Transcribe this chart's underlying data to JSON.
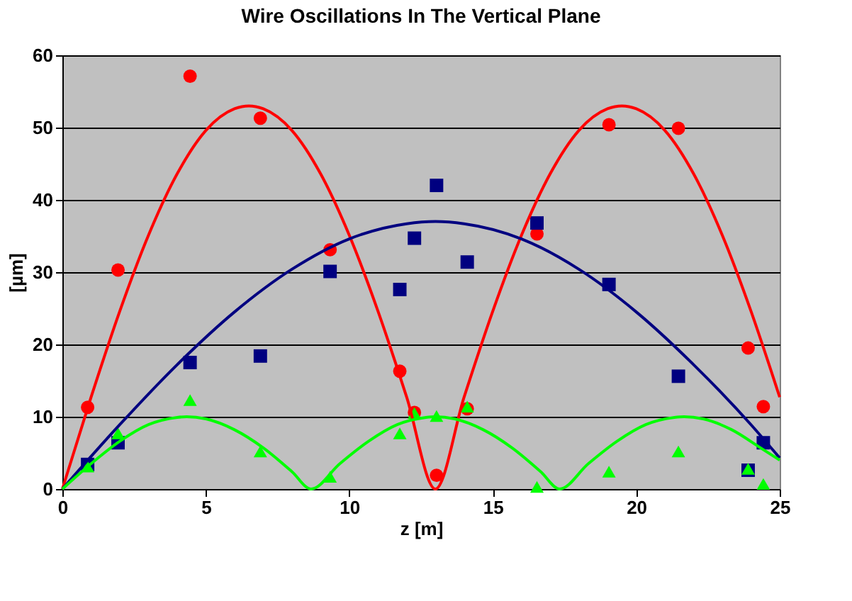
{
  "chart_data": {
    "type": "scatter",
    "title": "Wire Oscillations In The Vertical Plane",
    "xlabel": "z [m]",
    "ylabel": "[µm]",
    "xlim": [
      0,
      25
    ],
    "ylim": [
      0,
      60
    ],
    "xticks": [
      0,
      5,
      10,
      15,
      20,
      25
    ],
    "yticks": [
      0,
      10,
      20,
      30,
      40,
      50,
      60
    ],
    "grid": "y",
    "series": [
      {
        "marker": "circle",
        "color": "#ff0000",
        "x": [
          0.88,
          1.94,
          4.45,
          6.9,
          9.33,
          11.76,
          12.27,
          13.04,
          14.11,
          16.54,
          19.05,
          21.47,
          23.9,
          24.43
        ],
        "values": [
          11.3,
          30.3,
          57.1,
          51.3,
          33.1,
          16.3,
          10.6,
          1.9,
          11.1,
          35.3,
          50.4,
          49.9,
          19.5,
          11.4
        ]
      },
      {
        "marker": "square",
        "color": "#000080",
        "x": [
          0.88,
          1.94,
          4.45,
          6.9,
          9.33,
          11.76,
          12.27,
          13.04,
          14.11,
          16.54,
          19.05,
          21.47,
          23.9,
          24.43
        ],
        "values": [
          3.4,
          6.4,
          17.5,
          18.4,
          30.1,
          27.6,
          34.7,
          42.0,
          31.4,
          36.8,
          28.3,
          15.6,
          2.6,
          6.4
        ]
      },
      {
        "marker": "triangle",
        "color": "#00ff00",
        "x": [
          0.88,
          1.94,
          4.45,
          6.9,
          9.33,
          11.76,
          12.27,
          13.04,
          14.11,
          16.54,
          19.05,
          21.47,
          23.9,
          24.43
        ],
        "values": [
          3.1,
          7.7,
          12.3,
          5.2,
          1.7,
          7.7,
          10.5,
          10.1,
          11.4,
          0.3,
          2.4,
          5.2,
          2.8,
          0.7
        ]
      },
      {
        "type": "line",
        "line_style": "solid",
        "color": "#ff0000",
        "x": [
          0,
          1,
          2,
          3,
          4,
          5,
          6,
          6.5,
          7,
          8,
          9,
          10,
          11,
          12,
          13,
          14,
          15,
          16,
          17,
          18,
          19,
          19.5,
          20,
          21,
          22,
          23,
          24,
          25
        ],
        "values": [
          0,
          12.7,
          24.6,
          35.1,
          43.6,
          49.6,
          52.6,
          53,
          52.6,
          49.6,
          43.6,
          35.1,
          24.6,
          12.7,
          0,
          12.7,
          24.6,
          35.1,
          43.6,
          49.6,
          52.6,
          53,
          52.6,
          49.6,
          43.6,
          35.1,
          24.6,
          12.7
        ]
      },
      {
        "type": "line",
        "line_style": "solid",
        "color": "#000080",
        "x": [
          0,
          2,
          4,
          6,
          8,
          10,
          12,
          13,
          14,
          16,
          18,
          20,
          22,
          24,
          25
        ],
        "values": [
          0,
          8.9,
          17.2,
          24.5,
          30.4,
          34.6,
          36.7,
          37,
          36.7,
          34.6,
          30.4,
          24.5,
          17.2,
          8.9,
          4.3
        ]
      },
      {
        "type": "line",
        "line_style": "solid",
        "color": "#00ff00",
        "x": [
          0,
          1,
          2,
          3,
          4,
          4.33,
          5,
          6,
          7,
          8,
          8.67,
          9.67,
          10.67,
          11.67,
          12.67,
          13,
          13.67,
          14.67,
          15.67,
          16.67,
          17.33,
          18.33,
          19.33,
          20.33,
          21.33,
          21.67,
          22.33,
          23.33,
          24.33,
          25
        ],
        "values": [
          0,
          3.5,
          6.6,
          8.9,
          9.9,
          10,
          9.7,
          8.2,
          5.7,
          2.4,
          0,
          3.5,
          6.6,
          8.9,
          9.9,
          10,
          9.7,
          8.2,
          5.7,
          2.4,
          0,
          3.5,
          6.6,
          8.9,
          9.9,
          10,
          9.7,
          8.2,
          5.7,
          4
        ]
      }
    ]
  }
}
